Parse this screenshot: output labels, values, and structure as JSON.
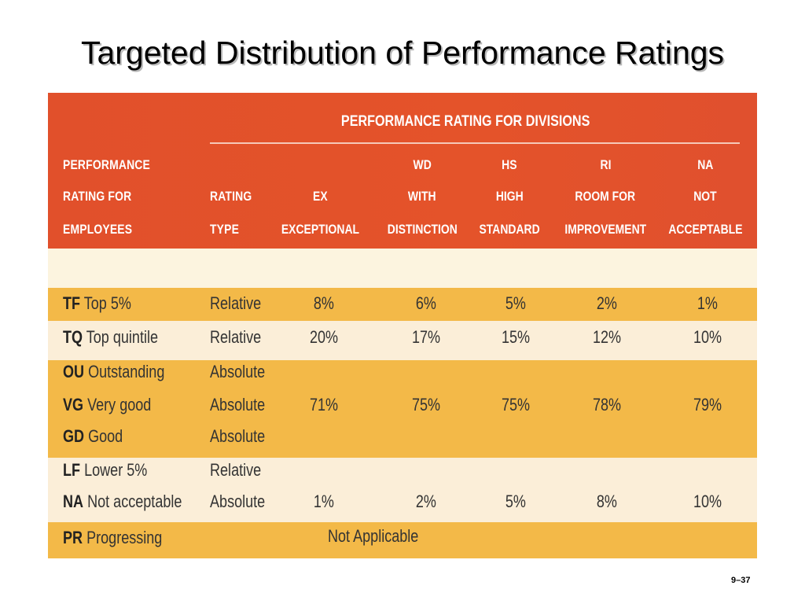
{
  "slide": {
    "title": "Targeted Distribution of Performance Ratings",
    "page_number": "9–37"
  },
  "table": {
    "group_header": "PERFORMANCE RATING FOR DIVISIONS",
    "left_header": [
      "PERFORMANCE",
      "RATING FOR",
      "EMPLOYEES"
    ],
    "type_header": [
      "RATING",
      "TYPE"
    ],
    "columns": [
      {
        "code": "",
        "line1": "EX",
        "line2": "EXCEPTIONAL"
      },
      {
        "code": "WD",
        "line1": "WITH",
        "line2": "DISTINCTION"
      },
      {
        "code": "HS",
        "line1": "HIGH",
        "line2": "STANDARD"
      },
      {
        "code": "RI",
        "line1": "ROOM FOR",
        "line2": "IMPROVEMENT"
      },
      {
        "code": "NA",
        "line1": "NOT",
        "line2": "ACCEPTABLE"
      }
    ],
    "rows": [
      {
        "code": "TF",
        "label": "Top 5%",
        "type": "Relative",
        "values": [
          "8%",
          "6%",
          "5%",
          "2%",
          "1%"
        ]
      },
      {
        "code": "TQ",
        "label": "Top quintile",
        "type": "Relative",
        "values": [
          "20%",
          "17%",
          "15%",
          "12%",
          "10%"
        ]
      },
      {
        "code": "OU",
        "label": "Outstanding",
        "type": "Absolute",
        "values": []
      },
      {
        "code": "VG",
        "label": "Very good",
        "type": "Absolute",
        "values": [
          "71%",
          "75%",
          "75%",
          "78%",
          "79%"
        ]
      },
      {
        "code": "GD",
        "label": "Good",
        "type": "Absolute",
        "values": []
      },
      {
        "code": "LF",
        "label": "Lower 5%",
        "type": "Relative",
        "values": []
      },
      {
        "code": "NA",
        "label": "Not acceptable",
        "type": "Absolute",
        "values": [
          "1%",
          "2%",
          "5%",
          "8%",
          "10%"
        ]
      },
      {
        "code": "PR",
        "label": "Progressing",
        "type": "",
        "span_text": "Not Applicable"
      }
    ]
  }
}
